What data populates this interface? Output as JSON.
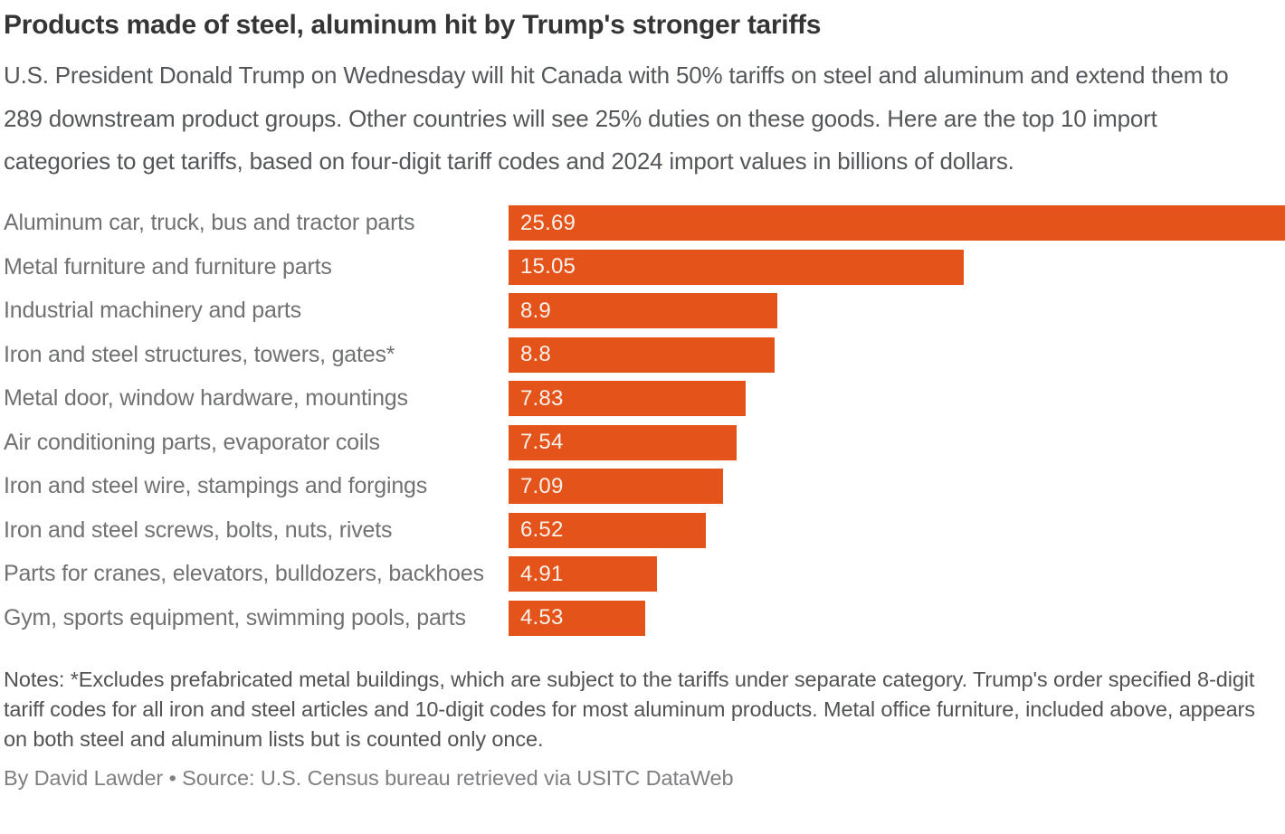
{
  "header": {
    "title": "Products made of steel, aluminum hit by Trump's stronger tariffs",
    "subtitle": "U.S. President Donald Trump on Wednesday will hit Canada with 50% tariffs on steel and aluminum and extend them to 289 downstream product groups. Other countries will see 25% duties on these goods. Here are the top 10 import categories to get tariffs, based on four-digit tariff codes and 2024 import values in billions of dollars."
  },
  "chart_data": {
    "type": "bar",
    "orientation": "horizontal",
    "title": "Products made of steel, aluminum hit by Trump's stronger tariffs",
    "xlabel": "",
    "ylabel": "",
    "unit": "billions of dollars, 2024 import values",
    "xlim": [
      0,
      25.69
    ],
    "grid": false,
    "legend": "none",
    "bar_color": "#e4541a",
    "value_label_color": "#f7f1ec",
    "category_label_color": "#6f7173",
    "categories": [
      "Aluminum car, truck, bus and tractor parts",
      "Metal furniture and furniture parts",
      "Industrial machinery and parts",
      "Iron and steel structures, towers, gates*",
      "Metal door, window hardware, mountings",
      "Air conditioning parts, evaporator coils",
      "Iron and steel wire, stampings and forgings",
      "Iron and steel screws, bolts, nuts, rivets",
      "Parts for cranes, elevators, bulldozers, backhoes",
      "Gym, sports equipment, swimming pools, parts"
    ],
    "values": [
      25.69,
      15.05,
      8.9,
      8.8,
      7.83,
      7.54,
      7.09,
      6.52,
      4.91,
      4.53
    ],
    "value_labels": [
      "25.69",
      "15.05",
      "8.9",
      "8.8",
      "7.83",
      "7.54",
      "7.09",
      "6.52",
      "4.91",
      "4.53"
    ]
  },
  "footer": {
    "notes": "Notes: *Excludes prefabricated metal buildings, which are subject to the tariffs under separate category. Trump's order specified 8-digit tariff codes for all iron and steel articles and 10-digit codes for most aluminum products. Metal office furniture, included above, appears on both steel and aluminum lists but is counted only once.",
    "byline_source": "By David Lawder • Source: U.S. Census bureau retrieved via USITC DataWeb"
  }
}
